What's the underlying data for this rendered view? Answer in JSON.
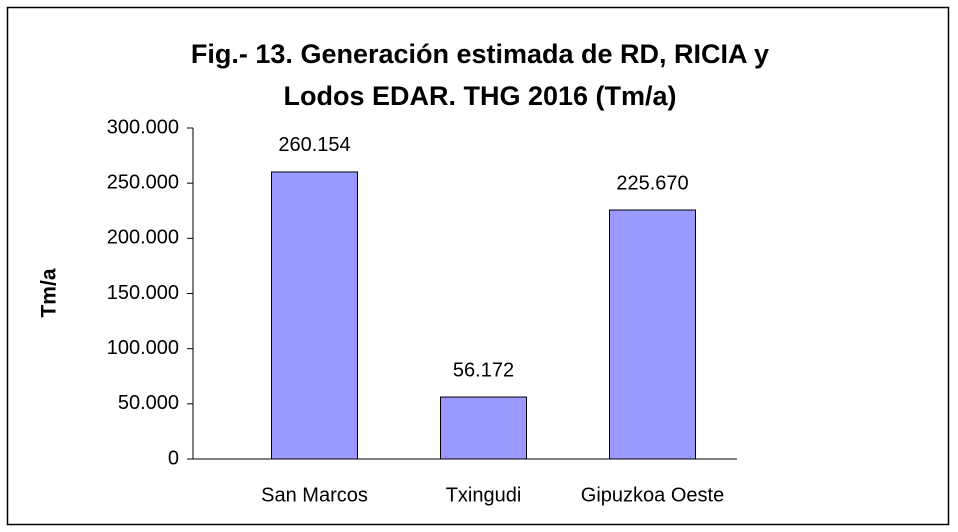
{
  "chart_data": {
    "type": "bar",
    "title": [
      "Fig.- 13. Generación estimada de RD, RICIA y",
      "Lodos EDAR. THG 2016 (Tm/a)"
    ],
    "y_label": "Tm/a",
    "categories": [
      "San Marcos",
      "Txingudi",
      "Gipuzkoa Oeste"
    ],
    "values": [
      260154,
      56172,
      225670
    ],
    "value_labels": [
      "260.154",
      "56.172",
      "225.670"
    ],
    "color": "#9999ff",
    "ylim": [
      0,
      300000
    ],
    "yticks": [
      0,
      {
        "value": 50000,
        "label": "50.000"
      },
      {
        "value": 100000,
        "label": "100.000"
      },
      {
        "value": 150000,
        "label": "150.000"
      },
      {
        "value": 200000,
        "label": "200.000"
      },
      {
        "value": 250000,
        "label": "250.000"
      },
      {
        "value": 300000,
        "label": "300.000"
      }
    ],
    "grid": false
  }
}
